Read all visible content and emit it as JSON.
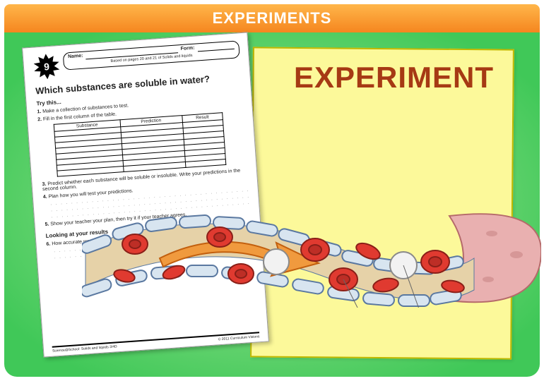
{
  "header": {
    "title": "EXPERIMENTS",
    "bg_top": "#ffb64a",
    "bg_bottom": "#f5861f",
    "text_color": "#ffffff"
  },
  "panel": {
    "bg_inner": "#a9e79a",
    "bg_outer": "#40c858"
  },
  "sticky": {
    "bg": "#fcf99a",
    "border": "#bfb800"
  },
  "big_label": {
    "text": "EXPERIMENT",
    "color": "#a63a14"
  },
  "worksheet": {
    "burst_number": "9",
    "burst_color": "#000000",
    "name_label": "Name:",
    "form_label": "Form:",
    "based_on": "Based on pages 20 and 21 of Solids and liquids",
    "title": "Which substances are soluble in water?",
    "try_heading": "Try this...",
    "step1": "Make a collection of substances to test.",
    "step2": "Fill in the first column of the table.",
    "table_headers": [
      "Substance",
      "Prediction",
      "Result"
    ],
    "table_blank_rows": 8,
    "step3": "Predict whether each substance will be soluble or insoluble. Write your predictions in the second column.",
    "step4": "Plan how you will test your predictions.",
    "step5": "Show your teacher your plan, then try it if your teacher agrees.",
    "results_heading": "Looking at your results",
    "step6": "How accurate were your predictions?",
    "footer_left": "Science@School: Solids and liquids 3/4D",
    "footer_right": "© 2011 Curriculum Visions"
  },
  "vessel": {
    "lumen_color": "#e6d2a8",
    "wall_segment_fill": "#d8e5f0",
    "wall_segment_stroke": "#5a78a0",
    "tissue_fill": "#e9b0b0",
    "tissue_stroke": "#b56a6a",
    "rbc_fill": "#e03a30",
    "rbc_stroke": "#8a1f18",
    "wbc_fill": "#f2f2f2",
    "wbc_stroke": "#8a8a8a",
    "arrow_fill": "#f09a3e",
    "arrow_stroke": "#c25f0e",
    "pointer_stroke": "#666666"
  }
}
